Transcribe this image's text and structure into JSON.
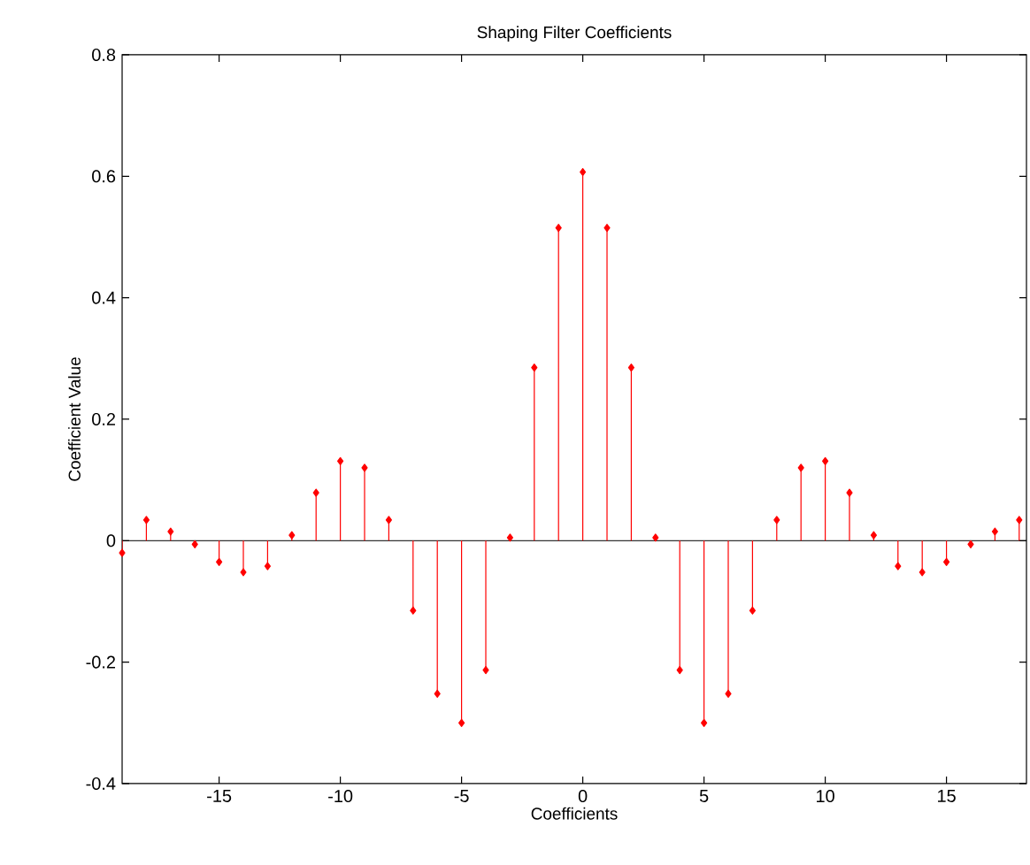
{
  "chart_data": {
    "type": "lollipop",
    "title": "Shaping Filter Coefficients",
    "xlabel": "Coefficients",
    "ylabel": "Coefficient Value",
    "x": [
      -19,
      -18,
      -17,
      -16,
      -15,
      -14,
      -13,
      -12,
      -11,
      -10,
      -9,
      -8,
      -7,
      -6,
      -5,
      -4,
      -3,
      -2,
      -1,
      0,
      1,
      2,
      3,
      4,
      5,
      6,
      7,
      8,
      9,
      10,
      11,
      12,
      13,
      14,
      15,
      16,
      17,
      18
    ],
    "series": [
      {
        "color": "#ff0000",
        "values": [
          -0.02,
          0.034,
          0.015,
          -0.006,
          -0.035,
          -0.052,
          -0.042,
          0.009,
          0.079,
          0.131,
          0.12,
          0.034,
          -0.115,
          -0.252,
          -0.3,
          -0.213,
          0.005,
          0.285,
          0.515,
          0.607,
          0.515,
          0.285,
          0.005,
          -0.213,
          -0.3,
          -0.252,
          -0.115,
          0.034,
          0.12,
          0.131,
          0.079,
          0.009,
          -0.042,
          -0.052,
          -0.035,
          -0.006,
          0.015,
          0.034
        ]
      }
    ],
    "xlim": [
      -19,
      18.3
    ],
    "ylim": [
      -0.4,
      0.8
    ],
    "xticks": [
      -15,
      -10,
      -5,
      0,
      5,
      10,
      15
    ],
    "yticks": [
      -0.4,
      -0.2,
      {
        "value": 0,
        "label": "0"
      },
      0.2,
      0.4,
      0.6,
      0.8
    ],
    "ref_lines": [
      {
        "axis": "y",
        "value": 0,
        "color": "#000000"
      }
    ],
    "marker": "diamond",
    "line_style": "solid",
    "grid": false
  }
}
